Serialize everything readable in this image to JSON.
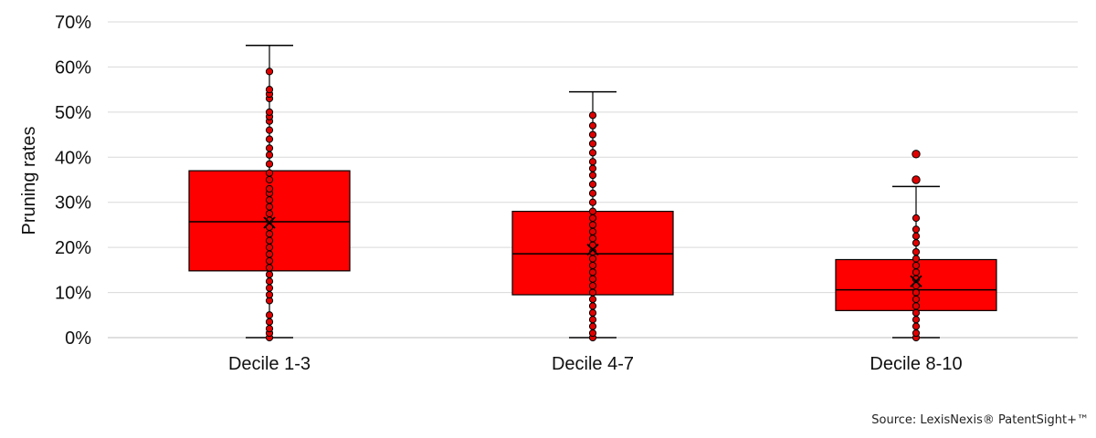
{
  "chart_data": {
    "type": "box",
    "ylabel": "Pruning rates",
    "y_ticks": [
      "0%",
      "10%",
      "20%",
      "30%",
      "40%",
      "50%",
      "60%",
      "70%"
    ],
    "ylim": [
      0,
      70
    ],
    "grid": true,
    "box_color": "#ff0000",
    "point_color": "#e00000",
    "categories": [
      "Decile 1-3",
      "Decile 4-7",
      "Decile 8-10"
    ],
    "boxes": [
      {
        "category": "Decile 1-3",
        "min": 0,
        "q1": 14.8,
        "median": 25.7,
        "q3": 37.0,
        "max": 64.8,
        "mean": 25.5,
        "outliers": [],
        "points": [
          0,
          1,
          2,
          3.5,
          5,
          8.2,
          9.5,
          11,
          12.5,
          14,
          15.5,
          17,
          18.5,
          20,
          21.5,
          23,
          24.5,
          26,
          27.5,
          29,
          30.5,
          32,
          33,
          35,
          36.5,
          38.5,
          40.5,
          42,
          44,
          46,
          48,
          49,
          50,
          53,
          54,
          55,
          59
        ]
      },
      {
        "category": "Decile 4-7",
        "min": 0,
        "q1": 9.5,
        "median": 18.6,
        "q3": 28.0,
        "max": 54.5,
        "mean": 19.5,
        "outliers": [],
        "points": [
          0,
          1,
          2.5,
          4,
          5.5,
          7,
          8.5,
          10,
          11.5,
          13,
          14.5,
          16,
          17.5,
          19,
          20.5,
          22,
          23.5,
          25,
          26.5,
          28,
          30,
          32,
          34,
          36,
          37.5,
          39,
          41,
          43,
          45,
          47,
          49.3
        ]
      },
      {
        "category": "Decile 8-10",
        "min": 0,
        "q1": 6.0,
        "median": 10.6,
        "q3": 17.3,
        "max": 33.5,
        "mean": 12.5,
        "outliers": [
          35,
          40.7
        ],
        "points": [
          0,
          1,
          2.5,
          4,
          5.5,
          7,
          8.5,
          10,
          11.5,
          13,
          14.5,
          16,
          17.5,
          19,
          21,
          22.5,
          24,
          26.5
        ]
      }
    ]
  },
  "footer": {
    "source": "Source: LexisNexis® PatentSight+™"
  }
}
